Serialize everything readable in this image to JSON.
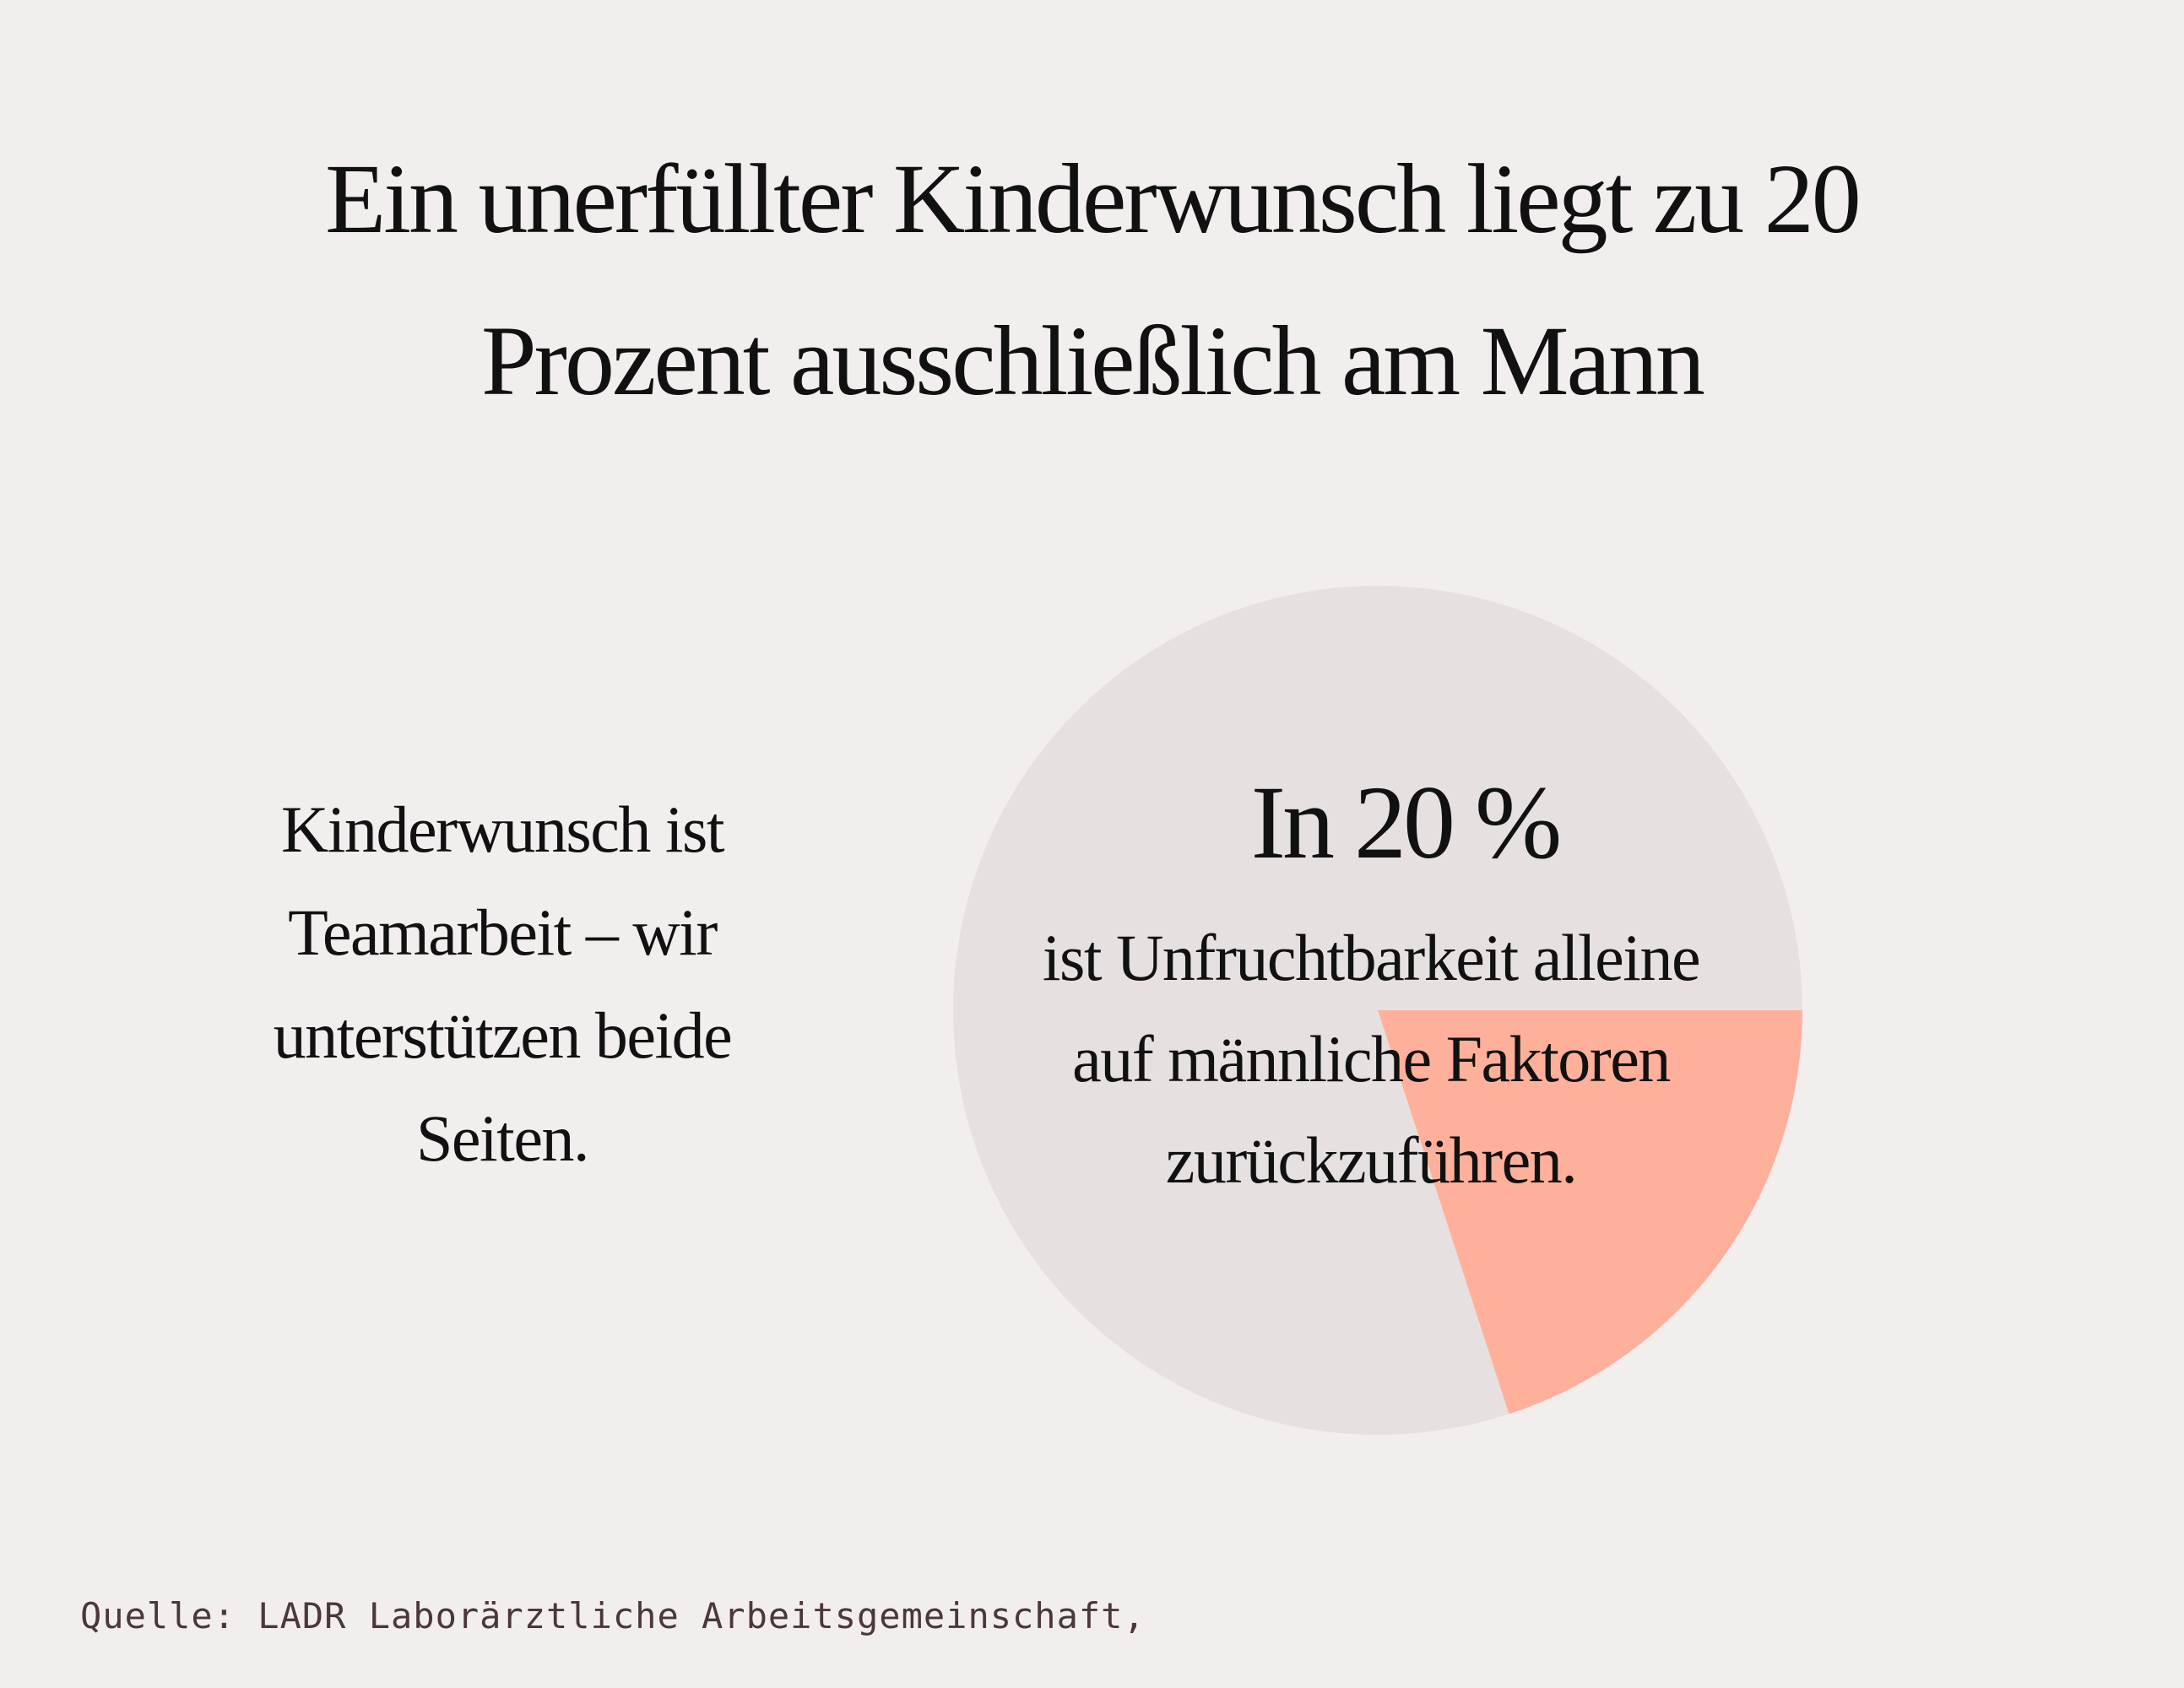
{
  "title_lines": [
    "Ein unerfüllter Kinderwunsch liegt zu 20",
    "Prozent  ausschließlich am Mann"
  ],
  "side_text_lines": [
    "Kinderwunsch ist",
    "Teamarbeit – wir",
    "unterstützen beide",
    "Seiten."
  ],
  "chart_data": {
    "type": "pie",
    "slices": [
      {
        "value": 20,
        "color": "#ffb09a"
      },
      {
        "value": 80,
        "color": "#e6e0e0"
      }
    ],
    "headline": "In 20 %",
    "caption_lines": [
      "ist Unfruchtbarkeit alleine",
      "auf männliche Faktoren",
      "zurückzuführen."
    ]
  },
  "source": "Quelle: LADR Laborärztliche Arbeitsgemeinschaft,"
}
